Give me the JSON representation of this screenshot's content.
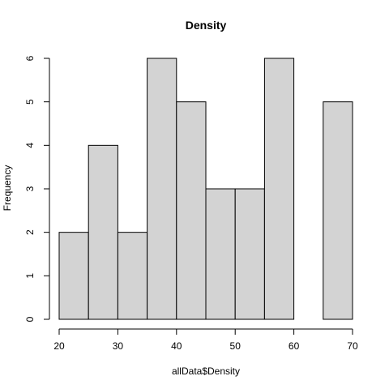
{
  "chart_data": {
    "type": "bar",
    "title": "Density",
    "xlabel": "allData$Density",
    "ylabel": "Frequency",
    "bins": [
      {
        "from": 20,
        "to": 25,
        "count": 2
      },
      {
        "from": 25,
        "to": 30,
        "count": 4
      },
      {
        "from": 30,
        "to": 35,
        "count": 2
      },
      {
        "from": 35,
        "to": 40,
        "count": 6
      },
      {
        "from": 40,
        "to": 45,
        "count": 5
      },
      {
        "from": 45,
        "to": 50,
        "count": 3
      },
      {
        "from": 50,
        "to": 55,
        "count": 3
      },
      {
        "from": 55,
        "to": 60,
        "count": 6
      },
      {
        "from": 60,
        "to": 65,
        "count": 0
      },
      {
        "from": 65,
        "to": 70,
        "count": 5
      }
    ],
    "xlim": [
      20,
      70
    ],
    "ylim": [
      0,
      6
    ],
    "x_ticks": [
      "20",
      "30",
      "40",
      "50",
      "60",
      "70"
    ],
    "y_ticks": [
      "0",
      "1",
      "2",
      "3",
      "4",
      "5",
      "6"
    ],
    "grid": false,
    "bar_color": "#d3d3d3",
    "border_color": "#000000"
  }
}
